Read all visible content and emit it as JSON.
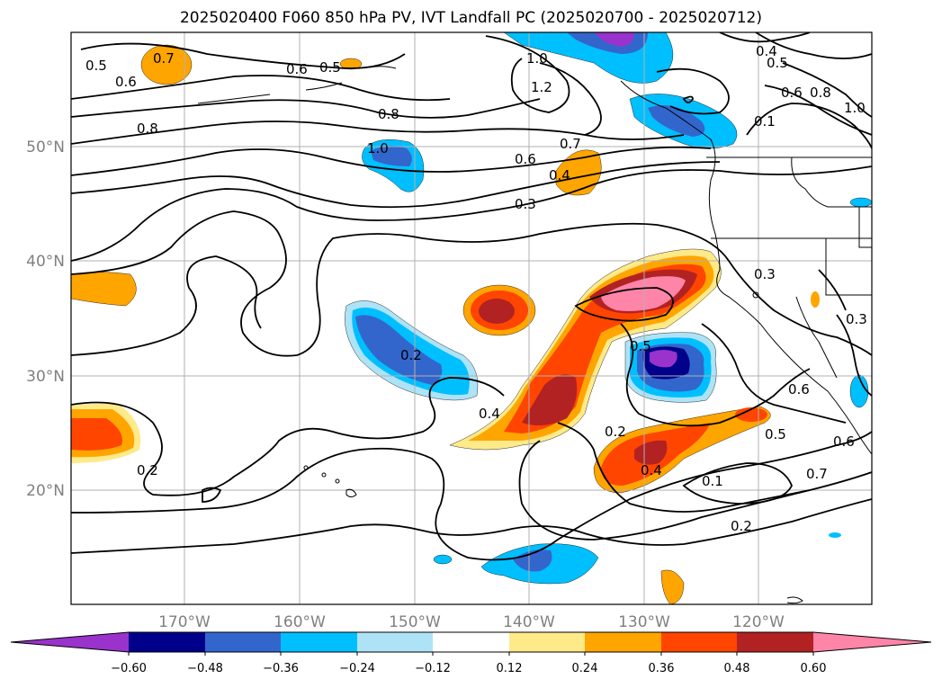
{
  "title": "2025020400 F060 850 hPa PV, IVT Landfall PC (2025020700 - 2025020712)",
  "map": {
    "lon_ticks": [
      "170°W",
      "160°W",
      "150°W",
      "140°W",
      "130°W",
      "120°W"
    ],
    "lat_ticks": [
      "20°N",
      "30°N",
      "40°N",
      "50°N"
    ]
  },
  "colorbar": {
    "colors": [
      "#9933cc",
      "#00008b",
      "#3366cc",
      "#00bfff",
      "#aee3f7",
      "#ffffff",
      "#ffea8a",
      "#ffa500",
      "#ff4500",
      "#b22222",
      "#ff85a8"
    ],
    "labels": [
      "−0.60",
      "−0.48",
      "−0.36",
      "−0.24",
      "−0.12",
      "0.12",
      "0.24",
      "0.36",
      "0.48",
      "0.60"
    ]
  },
  "contour_labels": [
    "0.5",
    "0.6",
    "0.7",
    "0.6",
    "0.5",
    "1.0",
    "1.2",
    "0.4",
    "0.5",
    "0.6",
    "0.8",
    "1.0",
    "0.8",
    "0.8",
    "1.0",
    "0.7",
    "0.6",
    "0.4",
    "0.3",
    "0.1",
    "0.3",
    "0.2",
    "0.5",
    "0.3",
    "0.4",
    "0.6",
    "0.2",
    "0.4",
    "0.5",
    "0.6",
    "0.7",
    "0.1",
    "0.2",
    "0.2"
  ]
}
